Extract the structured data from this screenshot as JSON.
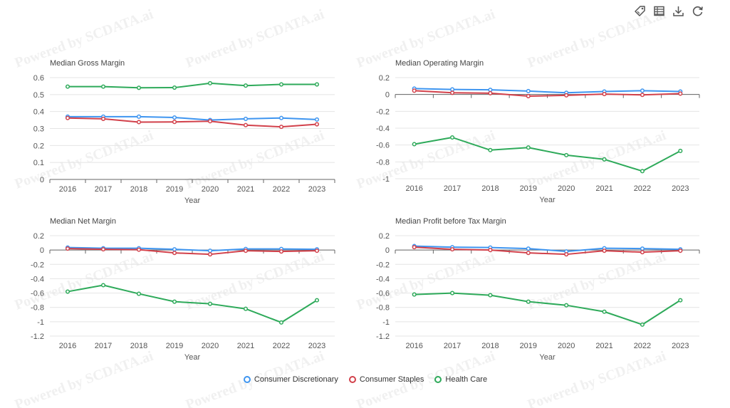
{
  "watermark": "Powered by SCDATA.ai",
  "toolbar": [
    {
      "name": "tag-icon"
    },
    {
      "name": "data-view-icon"
    },
    {
      "name": "download-icon"
    },
    {
      "name": "refresh-icon"
    }
  ],
  "colors": {
    "Consumer Discretionary": "#3e95f0",
    "Consumer Staples": "#d2414b",
    "Health Care": "#2eaa5a"
  },
  "chart_data": [
    {
      "type": "line",
      "title": "Median Gross Margin",
      "xlabel": "Year",
      "categories": [
        "2016",
        "2017",
        "2018",
        "2019",
        "2020",
        "2021",
        "2022",
        "2023"
      ],
      "ylim": [
        0,
        0.6
      ],
      "yticks": [
        0,
        0.1,
        0.2,
        0.3,
        0.4,
        0.5,
        0.6
      ],
      "ytick_labels": [
        "0",
        "0.1",
        "0.2",
        "0.3",
        "0.4",
        "0.5",
        "0.6"
      ],
      "series": [
        {
          "name": "Consumer Discretionary",
          "values": [
            0.37,
            0.37,
            0.37,
            0.365,
            0.35,
            0.357,
            0.362,
            0.353
          ]
        },
        {
          "name": "Consumer Staples",
          "values": [
            0.362,
            0.357,
            0.338,
            0.339,
            0.343,
            0.32,
            0.31,
            0.325
          ]
        },
        {
          "name": "Health Care",
          "values": [
            0.547,
            0.547,
            0.54,
            0.541,
            0.567,
            0.553,
            0.56,
            0.56
          ]
        }
      ]
    },
    {
      "type": "line",
      "title": "Median Operating Margin",
      "xlabel": "Year",
      "categories": [
        "2016",
        "2017",
        "2018",
        "2019",
        "2020",
        "2021",
        "2022",
        "2023"
      ],
      "ylim": [
        -1,
        0.2
      ],
      "yticks": [
        -1,
        -0.8,
        -0.6,
        -0.4,
        -0.2,
        0,
        0.2
      ],
      "ytick_labels": [
        "-1",
        "-0.8",
        "-0.6",
        "-0.4",
        "-0.2",
        "0",
        "0.2"
      ],
      "series": [
        {
          "name": "Consumer Discretionary",
          "values": [
            0.07,
            0.06,
            0.055,
            0.04,
            0.02,
            0.035,
            0.045,
            0.035
          ]
        },
        {
          "name": "Consumer Staples",
          "values": [
            0.045,
            0.02,
            0.015,
            -0.02,
            -0.01,
            0.005,
            -0.005,
            0.01
          ]
        },
        {
          "name": "Health Care",
          "values": [
            -0.59,
            -0.51,
            -0.66,
            -0.63,
            -0.72,
            -0.77,
            -0.91,
            -0.67
          ]
        }
      ]
    },
    {
      "type": "line",
      "title": "Median Net Margin",
      "xlabel": "Year",
      "categories": [
        "2016",
        "2017",
        "2018",
        "2019",
        "2020",
        "2021",
        "2022",
        "2023"
      ],
      "ylim": [
        -1.2,
        0.2
      ],
      "yticks": [
        -1.2,
        -1,
        -0.8,
        -0.6,
        -0.4,
        -0.2,
        0,
        0.2
      ],
      "ytick_labels": [
        "-1.2",
        "-1",
        "-0.8",
        "-0.6",
        "-0.4",
        "-0.2",
        "0",
        "0.2"
      ],
      "series": [
        {
          "name": "Consumer Discretionary",
          "values": [
            0.035,
            0.025,
            0.025,
            0.01,
            -0.01,
            0.015,
            0.015,
            0.01
          ]
        },
        {
          "name": "Consumer Staples",
          "values": [
            0.02,
            0.01,
            0.005,
            -0.04,
            -0.06,
            -0.01,
            -0.02,
            -0.01
          ]
        },
        {
          "name": "Health Care",
          "values": [
            -0.58,
            -0.49,
            -0.61,
            -0.72,
            -0.75,
            -0.82,
            -1.01,
            -0.7
          ]
        }
      ]
    },
    {
      "type": "line",
      "title": "Median Profit before Tax Margin",
      "xlabel": "Year",
      "categories": [
        "2016",
        "2017",
        "2018",
        "2019",
        "2020",
        "2021",
        "2022",
        "2023"
      ],
      "ylim": [
        -1.2,
        0.2
      ],
      "yticks": [
        -1.2,
        -1,
        -0.8,
        -0.6,
        -0.4,
        -0.2,
        0,
        0.2
      ],
      "ytick_labels": [
        "-1.2",
        "-1",
        "-0.8",
        "-0.6",
        "-0.4",
        "-0.2",
        "0",
        "0.2"
      ],
      "series": [
        {
          "name": "Consumer Discretionary",
          "values": [
            0.055,
            0.04,
            0.035,
            0.02,
            -0.02,
            0.025,
            0.02,
            0.01
          ]
        },
        {
          "name": "Consumer Staples",
          "values": [
            0.04,
            0.01,
            0.0,
            -0.04,
            -0.06,
            -0.01,
            -0.03,
            -0.01
          ]
        },
        {
          "name": "Health Care",
          "values": [
            -0.62,
            -0.6,
            -0.63,
            -0.72,
            -0.77,
            -0.86,
            -1.04,
            -0.7
          ]
        }
      ]
    }
  ],
  "legend": [
    {
      "label": "Consumer Discretionary"
    },
    {
      "label": "Consumer Staples"
    },
    {
      "label": "Health Care"
    }
  ]
}
